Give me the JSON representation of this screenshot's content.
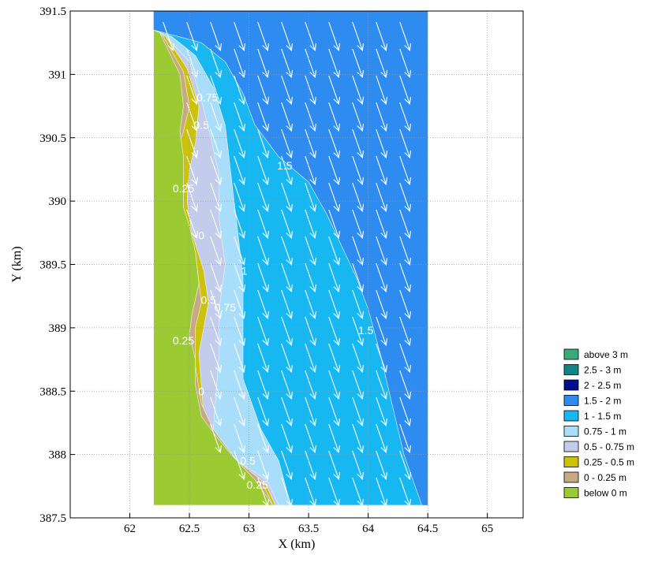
{
  "chart_data": {
    "type": "contour",
    "xlabel": "X (km)",
    "ylabel": "Y (km)",
    "xlim": [
      61.5,
      65.3
    ],
    "ylim": [
      387.5,
      391.5
    ],
    "xticks": [
      62,
      62.5,
      63,
      63.5,
      64,
      64.5,
      65
    ],
    "yticks": [
      387.5,
      388,
      388.5,
      389,
      389.5,
      390,
      390.5,
      391,
      391.5
    ],
    "grid": true,
    "domain_box": {
      "x": [
        62.2,
        64.5
      ],
      "y": [
        387.6,
        391.5
      ]
    },
    "legend_position": "right",
    "legend": [
      {
        "label": "above 3 m",
        "color": "#3aaa78"
      },
      {
        "label": "2.5 - 3 m",
        "color": "#118585"
      },
      {
        "label": "2 - 2.5 m",
        "color": "#000e8c"
      },
      {
        "label": "1.5 - 2 m",
        "color": "#2e8cf0"
      },
      {
        "label": "1 - 1.5 m",
        "color": "#17b7f2"
      },
      {
        "label": "0.75 - 1 m",
        "color": "#a9defa"
      },
      {
        "label": "0.5 - 0.75 m",
        "color": "#c3cceb"
      },
      {
        "label": "0.25 - 0.5 m",
        "color": "#cac20b"
      },
      {
        "label": "0 - 0.25 m",
        "color": "#c8aa82"
      },
      {
        "label": "below 0 m",
        "color": "#9bca33"
      }
    ],
    "regions": [
      {
        "band": "1.5 - 2 m",
        "color": "#2e8cf0",
        "points": [
          [
            62.2,
            391.5
          ],
          [
            64.5,
            391.5
          ],
          [
            64.5,
            387.6
          ],
          [
            62.2,
            387.6
          ]
        ]
      },
      {
        "band": "1 - 1.5 m",
        "color": "#17b7f2",
        "points": [
          [
            62.2,
            391.35
          ],
          [
            62.4,
            391.3
          ],
          [
            62.6,
            391.25
          ],
          [
            62.8,
            391.1
          ],
          [
            62.95,
            390.85
          ],
          [
            63.05,
            390.6
          ],
          [
            63.25,
            390.35
          ],
          [
            63.5,
            390.15
          ],
          [
            63.65,
            389.9
          ],
          [
            63.8,
            389.6
          ],
          [
            63.9,
            389.4
          ],
          [
            64.0,
            389.15
          ],
          [
            64.1,
            388.8
          ],
          [
            64.2,
            388.4
          ],
          [
            64.3,
            388.0
          ],
          [
            64.45,
            387.6
          ],
          [
            62.2,
            387.6
          ]
        ]
      },
      {
        "band": "0.75 - 1 m",
        "color": "#a9defa",
        "points": [
          [
            62.2,
            391.35
          ],
          [
            62.35,
            391.3
          ],
          [
            62.55,
            391.15
          ],
          [
            62.7,
            390.9
          ],
          [
            62.8,
            390.6
          ],
          [
            62.85,
            390.2
          ],
          [
            62.9,
            389.8
          ],
          [
            62.95,
            389.4
          ],
          [
            62.95,
            389.0
          ],
          [
            62.95,
            388.6
          ],
          [
            63.1,
            388.2
          ],
          [
            63.25,
            387.95
          ],
          [
            63.35,
            387.6
          ],
          [
            62.2,
            387.6
          ]
        ]
      },
      {
        "band": "0.5 - 0.75 m",
        "color": "#c3cceb",
        "points": [
          [
            62.2,
            391.35
          ],
          [
            62.32,
            391.28
          ],
          [
            62.5,
            391.1
          ],
          [
            62.6,
            390.8
          ],
          [
            62.68,
            390.5
          ],
          [
            62.75,
            390.2
          ],
          [
            62.75,
            389.85
          ],
          [
            62.8,
            389.5
          ],
          [
            62.75,
            389.15
          ],
          [
            62.75,
            388.8
          ],
          [
            62.72,
            388.45
          ],
          [
            62.7,
            388.2
          ],
          [
            62.9,
            387.95
          ],
          [
            63.15,
            387.8
          ],
          [
            63.25,
            387.6
          ],
          [
            62.2,
            387.6
          ]
        ]
      },
      {
        "band": "0.25 - 0.5 m",
        "color": "#cac20b",
        "points": [
          [
            62.2,
            391.35
          ],
          [
            62.3,
            391.3
          ],
          [
            62.48,
            391.05
          ],
          [
            62.58,
            390.75
          ],
          [
            62.55,
            390.45
          ],
          [
            62.5,
            390.25
          ],
          [
            62.48,
            390.0
          ],
          [
            62.52,
            389.75
          ],
          [
            62.62,
            389.45
          ],
          [
            62.66,
            389.2
          ],
          [
            62.62,
            389.0
          ],
          [
            62.58,
            388.8
          ],
          [
            62.6,
            388.55
          ],
          [
            62.62,
            388.3
          ],
          [
            62.75,
            388.1
          ],
          [
            62.95,
            387.9
          ],
          [
            63.15,
            387.75
          ],
          [
            63.22,
            387.6
          ],
          [
            62.2,
            387.6
          ]
        ]
      },
      {
        "band": "0 - 0.25 m",
        "color": "#c8aa82",
        "points": [
          [
            62.2,
            391.35
          ],
          [
            62.28,
            391.3
          ],
          [
            62.45,
            391.02
          ],
          [
            62.5,
            390.75
          ],
          [
            62.45,
            390.55
          ],
          [
            62.4,
            390.4
          ],
          [
            62.45,
            390.1
          ],
          [
            62.45,
            389.95
          ],
          [
            62.55,
            389.6
          ],
          [
            62.6,
            389.2
          ],
          [
            62.55,
            389.0
          ],
          [
            62.55,
            388.7
          ],
          [
            62.6,
            388.4
          ],
          [
            62.7,
            388.2
          ],
          [
            62.9,
            387.95
          ],
          [
            63.1,
            387.8
          ],
          [
            63.2,
            387.6
          ],
          [
            62.2,
            387.6
          ]
        ]
      },
      {
        "band": "below 0 m",
        "color": "#9bca33",
        "points": [
          [
            62.2,
            391.35
          ],
          [
            62.25,
            391.33
          ],
          [
            62.42,
            391.0
          ],
          [
            62.45,
            390.75
          ],
          [
            62.42,
            390.55
          ],
          [
            62.45,
            390.35
          ],
          [
            62.45,
            390.15
          ],
          [
            62.45,
            389.95
          ],
          [
            62.5,
            389.8
          ],
          [
            62.55,
            389.6
          ],
          [
            62.58,
            389.35
          ],
          [
            62.52,
            389.1
          ],
          [
            62.5,
            388.95
          ],
          [
            62.55,
            388.75
          ],
          [
            62.55,
            388.55
          ],
          [
            62.6,
            388.3
          ],
          [
            62.72,
            388.15
          ],
          [
            62.85,
            388.0
          ],
          [
            63.05,
            387.8
          ],
          [
            63.2,
            387.6
          ],
          [
            62.2,
            387.6
          ]
        ]
      }
    ],
    "contour_labels": [
      {
        "text": "0.75",
        "x": 62.65,
        "y": 390.82
      },
      {
        "text": "0.5",
        "x": 62.6,
        "y": 390.6
      },
      {
        "text": "1.5",
        "x": 63.3,
        "y": 390.28
      },
      {
        "text": "0.25",
        "x": 62.45,
        "y": 390.1
      },
      {
        "text": "0",
        "x": 62.6,
        "y": 389.73
      },
      {
        "text": "1",
        "x": 62.96,
        "y": 389.45
      },
      {
        "text": "0.5",
        "x": 62.66,
        "y": 389.22
      },
      {
        "text": "0.75",
        "x": 62.8,
        "y": 389.16
      },
      {
        "text": "1.5",
        "x": 63.98,
        "y": 388.98
      },
      {
        "text": "0.25",
        "x": 62.45,
        "y": 388.9
      },
      {
        "text": "0",
        "x": 62.6,
        "y": 388.5
      },
      {
        "text": "0.5",
        "x": 62.99,
        "y": 387.95
      },
      {
        "text": "0.25",
        "x": 63.07,
        "y": 387.76
      }
    ],
    "vector_field": {
      "direction_dx": 0.35,
      "direction_dy": -1,
      "color": "#ffffff"
    }
  }
}
